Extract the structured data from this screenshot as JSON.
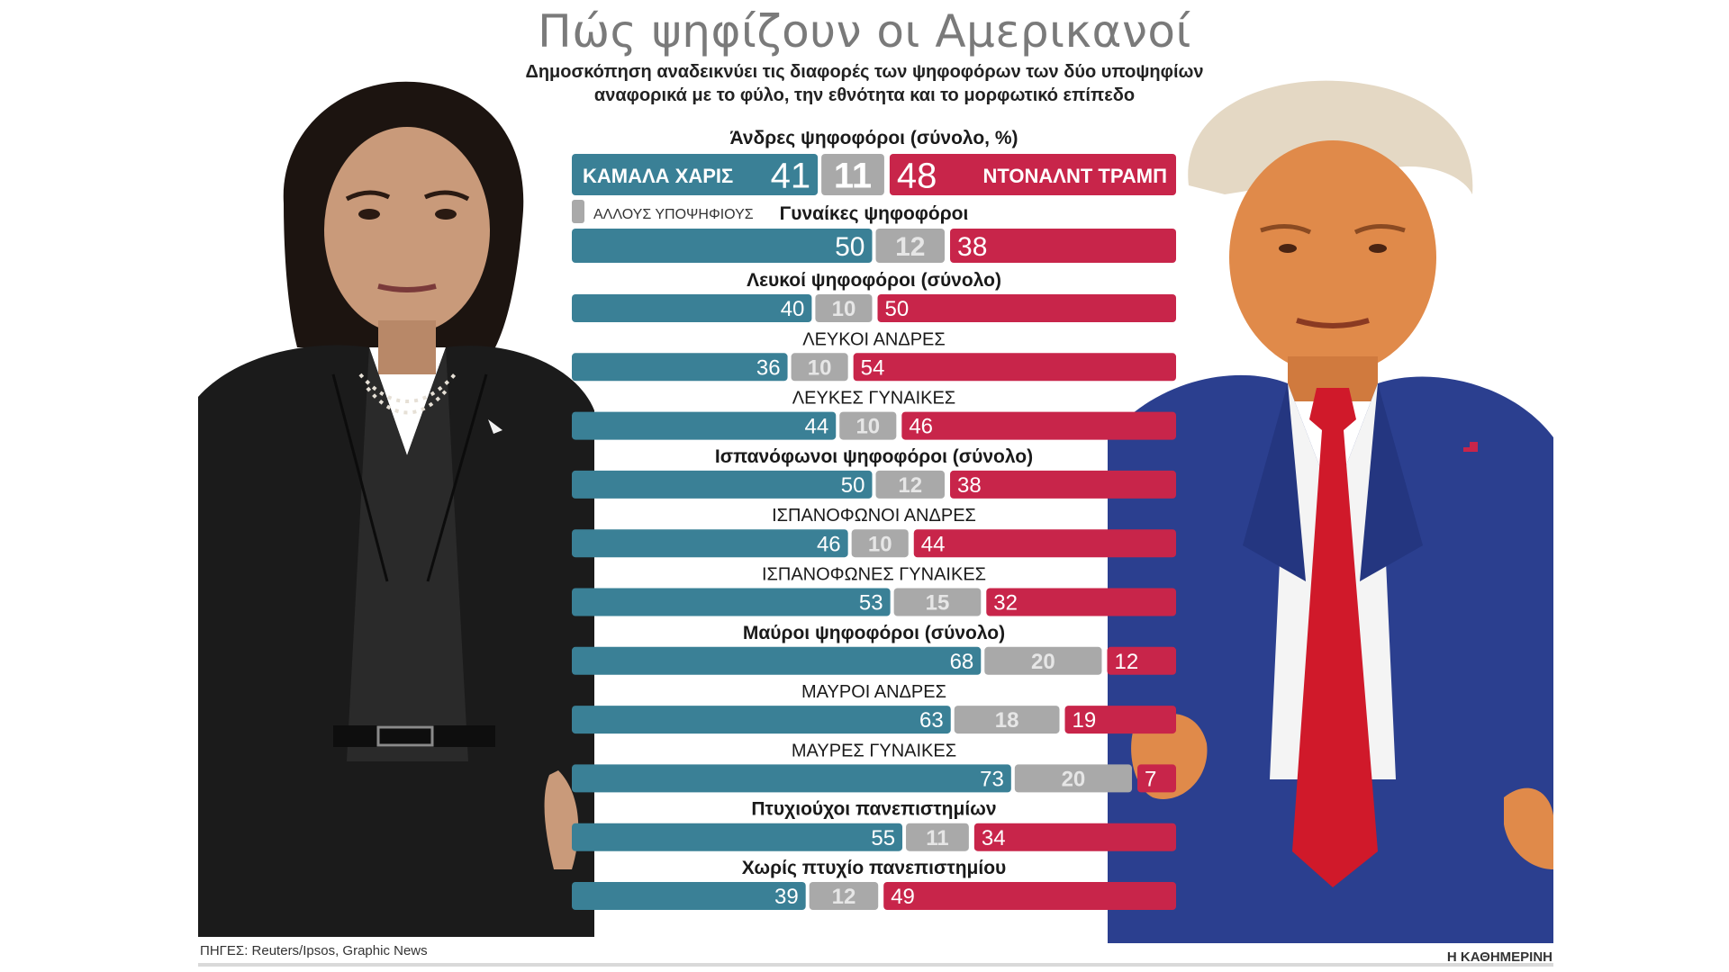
{
  "header": {
    "title": "Πώς ψηφίζουν οι Αμερικανοί",
    "subtitle_line1": "Δημοσκόπηση αναδεικνύει τις διαφορές των ψηφοφόρων των δύο υποψηφίων",
    "subtitle_line2": "αναφορικά με το φύλο, την εθνότητα και το μορφωτικό επίπεδο"
  },
  "candidates": {
    "left": "ΚΑΜΑΛΑ ΧΑΡΙΣ",
    "right": "ΝΤΟΝΑΛΝΤ ΤΡΑΜΠ",
    "other_legend": "ΑΛΛΟΥΣ ΥΠΟΨΗΦΙΟΥΣ"
  },
  "colors": {
    "harris": "#3a8096",
    "other": "#a9a9a9",
    "trump": "#c8254a",
    "harris_suit": "#1b1b1b",
    "trump_suit": "#2b3f8f",
    "trump_tie": "#d0192a",
    "skin_left": "#c99a7a",
    "skin_right": "#e08a4a"
  },
  "chart_data": {
    "type": "bar",
    "orientation": "horizontal-stacked-100",
    "series": [
      {
        "name": "ΚΑΜΑΛΑ ΧΑΡΙΣ",
        "values": [
          41,
          50,
          40,
          36,
          44,
          50,
          46,
          53,
          68,
          63,
          73,
          55,
          39
        ]
      },
      {
        "name": "ΑΛΛΟΥΣ ΥΠΟΨΗΦΙΟΥΣ",
        "values": [
          11,
          12,
          10,
          10,
          10,
          12,
          10,
          15,
          20,
          18,
          20,
          11,
          12
        ]
      },
      {
        "name": "ΝΤΟΝΑΛΝΤ ΤΡΑΜΠ",
        "values": [
          48,
          38,
          50,
          54,
          46,
          38,
          44,
          32,
          12,
          19,
          7,
          34,
          49
        ]
      }
    ],
    "categories": [
      "Άνδρες ψηφοφόροι (σύνολο, %)",
      "Γυναίκες ψηφοφόροι",
      "Λευκοί ψηφοφόροι (σύνολο)",
      "ΛΕΥΚΟΙ ΑΝΔΡΕΣ",
      "ΛΕΥΚΕΣ ΓΥΝΑΙΚΕΣ",
      "Ισπανόφωνοι ψηφοφόροι (σύνολο)",
      "ΙΣΠΑΝΟΦΩΝΟΙ ΑΝΔΡΕΣ",
      "ΙΣΠΑΝΟΦΩΝΕΣ ΓΥΝΑΙΚΕΣ",
      "Μαύροι ψηφοφόροι (σύνολο)",
      "ΜΑΥΡΟΙ ΑΝΔΡΕΣ",
      "ΜΑΥΡΕΣ ΓΥΝΑΙΚΕΣ",
      "Πτυχιούχοι πανεπιστημίων",
      "Χωρίς πτυχίο πανεπιστημίου"
    ],
    "category_style": [
      "bold",
      "bold",
      "bold",
      "caps",
      "caps",
      "bold",
      "caps",
      "caps",
      "bold",
      "caps",
      "caps",
      "bold",
      "bold"
    ],
    "xlim": [
      0,
      100
    ],
    "legend": "inline"
  },
  "footer": {
    "source": "ΠΗΓΕΣ: Reuters/Ipsos, Graphic News",
    "brand": "Η ΚΑΘΗΜΕΡΙΝΗ"
  }
}
